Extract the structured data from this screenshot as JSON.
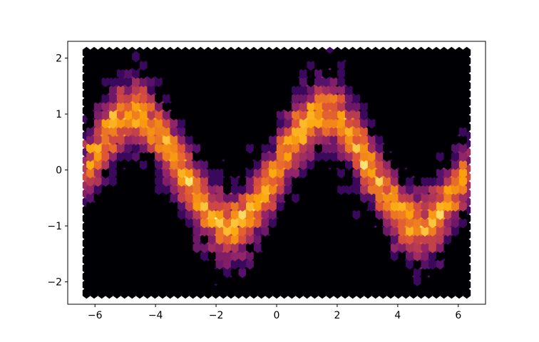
{
  "chart_data": {
    "type": "heatmap",
    "subtype": "hexbin",
    "title": "",
    "xlabel": "",
    "ylabel": "",
    "xlim": [
      -6.9,
      6.9
    ],
    "ylim": [
      -2.4,
      2.3
    ],
    "data_extent": {
      "x": [
        -6.28,
        6.28
      ],
      "y": [
        -2.2,
        2.1
      ]
    },
    "gridsize": 50,
    "colormap": "inferno",
    "x_ticks": [
      -6,
      -4,
      -2,
      0,
      2,
      4,
      6
    ],
    "x_tick_labels": [
      "−6",
      "−4",
      "−2",
      "0",
      "2",
      "4",
      "6"
    ],
    "y_ticks": [
      -2,
      -1,
      0,
      1,
      2
    ],
    "y_tick_labels": [
      "−2",
      "−1",
      "0",
      "1",
      "2"
    ],
    "underlying_curve": "y = sin(x) + noise",
    "grid": false,
    "legend": "none"
  },
  "colors": {
    "background": "#000004",
    "axes_edge": "#000000",
    "cmap_stops": [
      "#000004",
      "#420a68",
      "#932667",
      "#dd513a",
      "#fca50a",
      "#fcffa4"
    ]
  }
}
